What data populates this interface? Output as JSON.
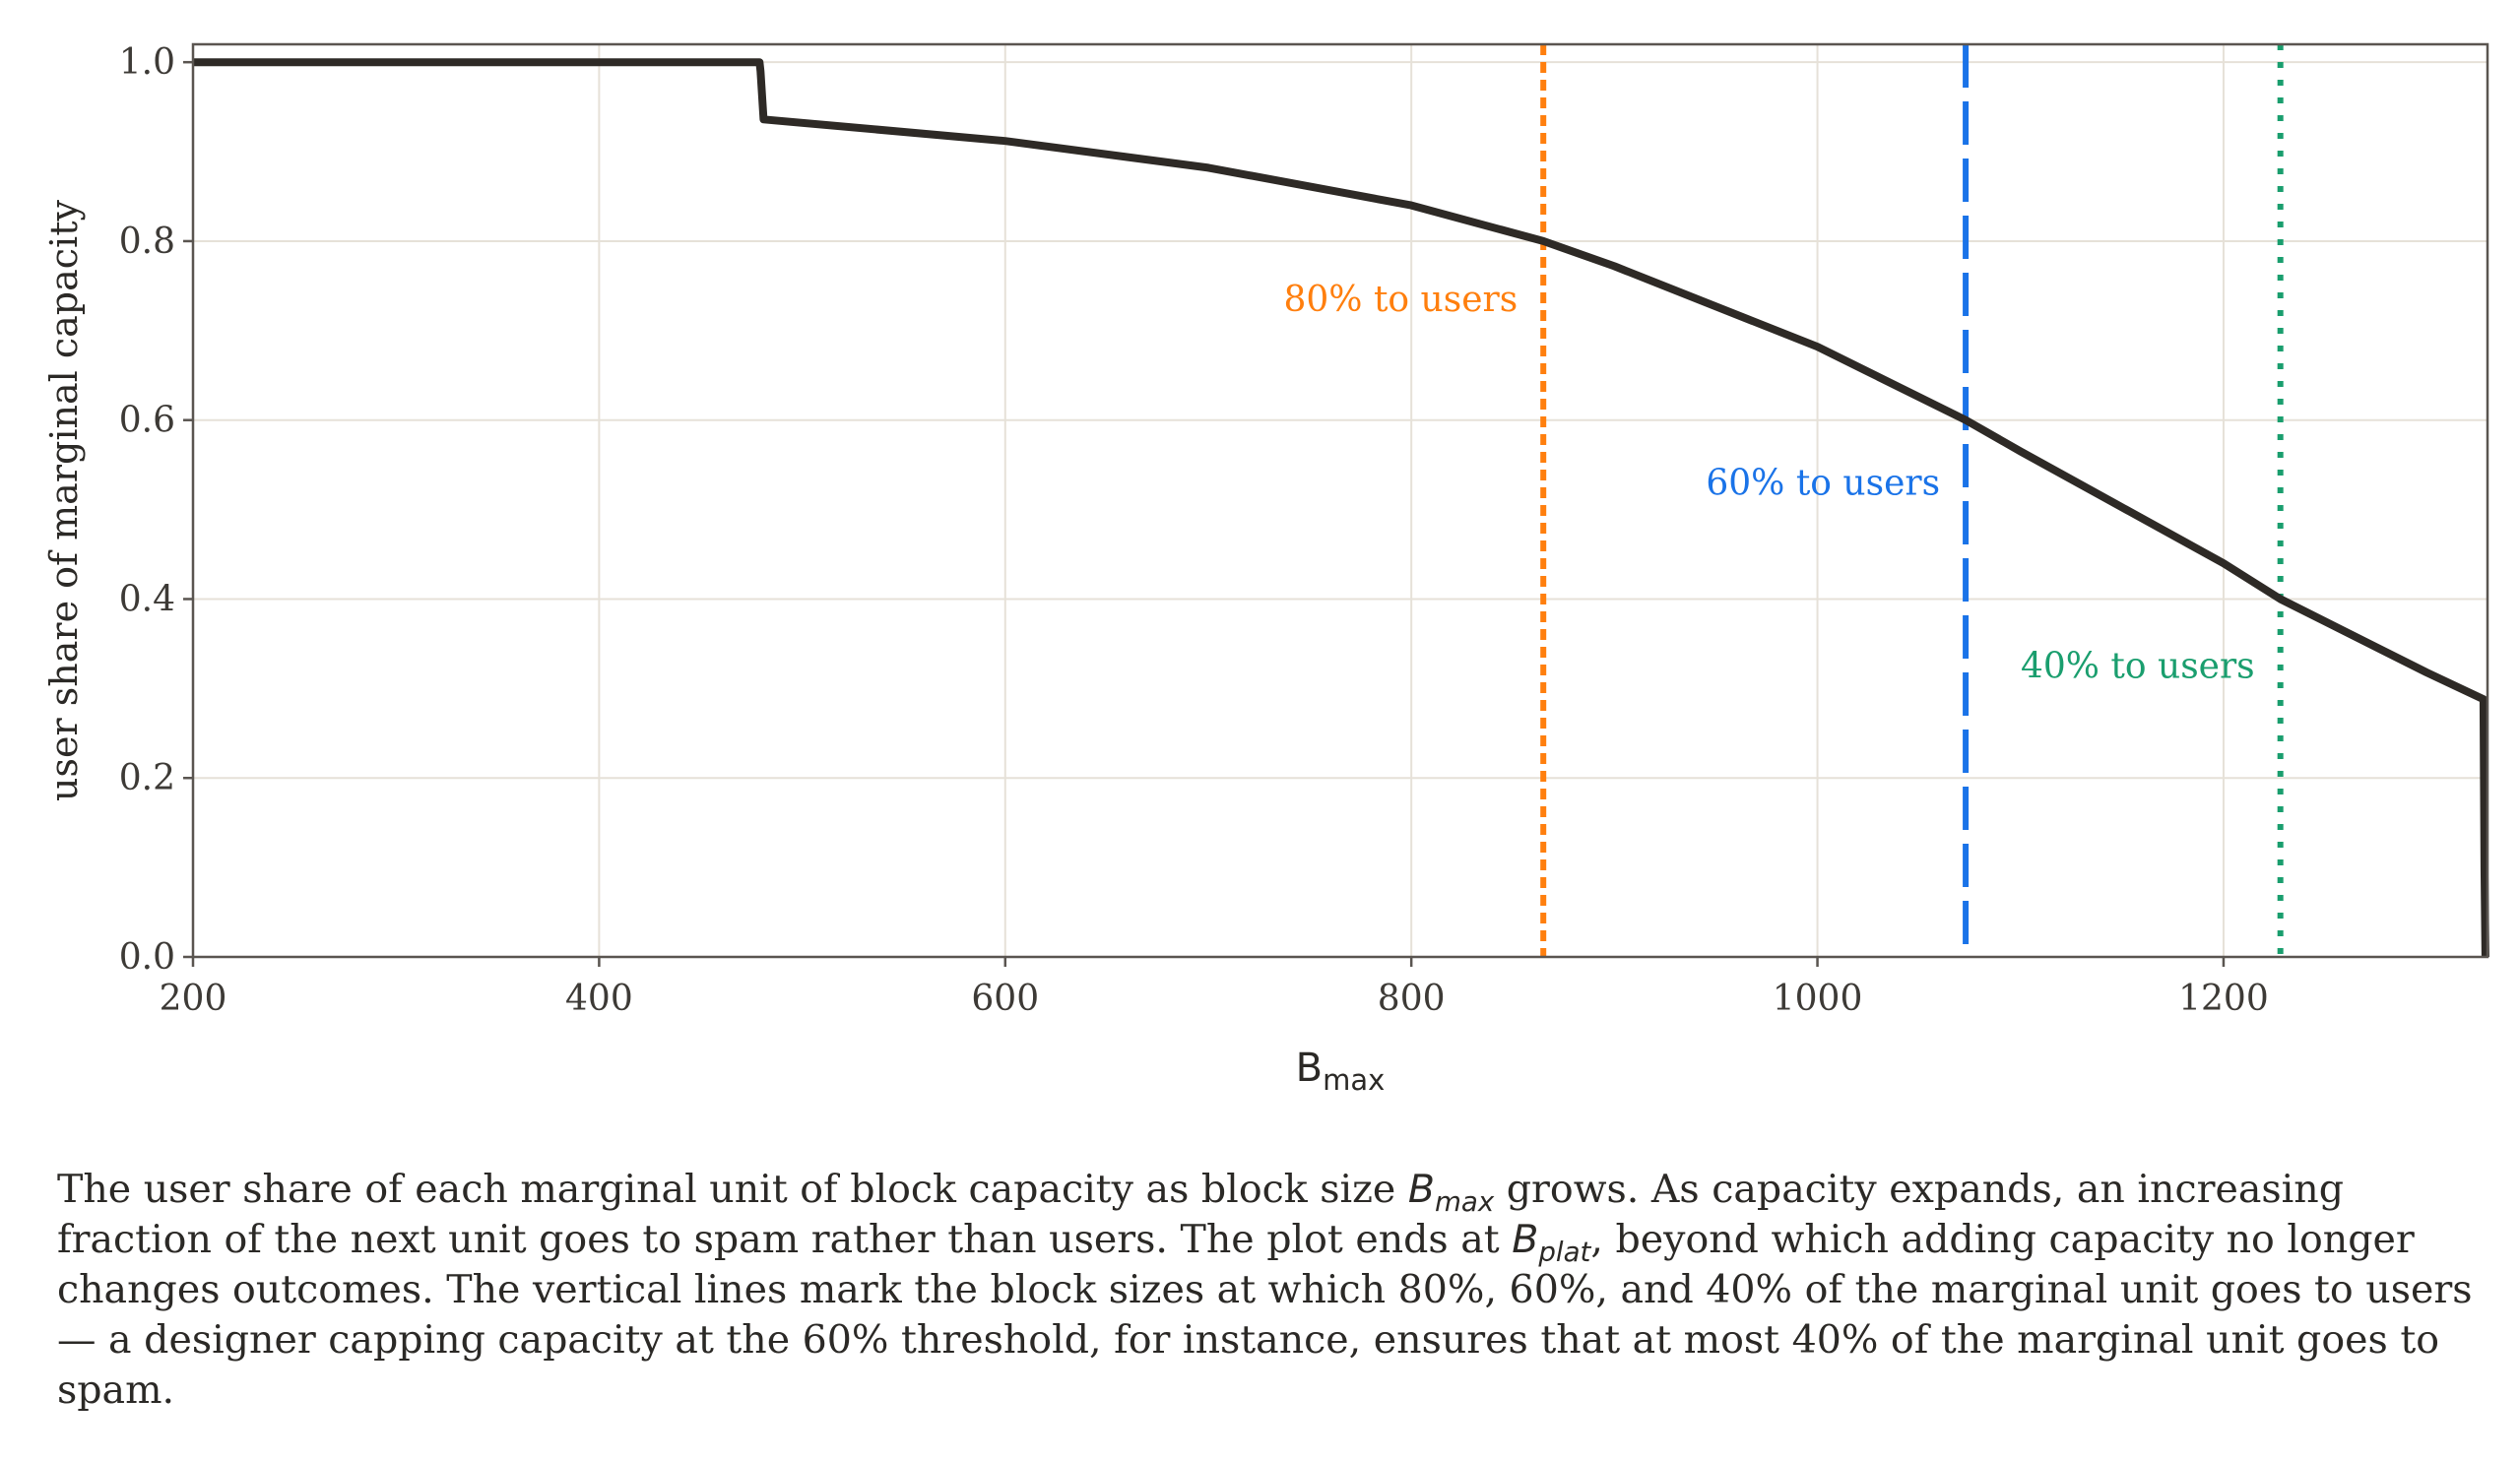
{
  "chart_data": {
    "type": "line",
    "title": "",
    "xlabel": {
      "base": "B",
      "sub": "max"
    },
    "ylabel": "user share of marginal capacity",
    "xlim": [
      200,
      1330
    ],
    "ylim": [
      0.0,
      1.02
    ],
    "xticks": [
      200,
      400,
      600,
      800,
      1000,
      1200
    ],
    "yticks": [
      0.0,
      0.2,
      0.4,
      0.6,
      0.8,
      1.0
    ],
    "xtick_labels": [
      "200",
      "400",
      "600",
      "800",
      "1000",
      "1200"
    ],
    "ytick_labels": [
      "0.0",
      "0.2",
      "0.4",
      "0.6",
      "0.8",
      "1.0"
    ],
    "grid": true,
    "series": [
      {
        "name": "user share",
        "color": "#2e2a26",
        "x": [
          200,
          479,
          479.5,
          481,
          600,
          700,
          800,
          865,
          900,
          1000,
          1073,
          1100,
          1200,
          1228,
          1300,
          1328,
          1328.5,
          1329
        ],
        "y": [
          1.0,
          1.0,
          0.99,
          0.936,
          0.912,
          0.882,
          0.84,
          0.8,
          0.772,
          0.682,
          0.6,
          0.565,
          0.44,
          0.4,
          0.318,
          0.288,
          0.1,
          0.0
        ]
      }
    ],
    "vlines": [
      {
        "x": 865,
        "label": "80% to users",
        "color": "#ff7f0e",
        "style": "dotted-dense"
      },
      {
        "x": 1073,
        "label": "60% to users",
        "color": "#1a73e8",
        "style": "dashed"
      },
      {
        "x": 1228,
        "label": "40% to users",
        "color": "#1a9e6e",
        "style": "dotted"
      }
    ]
  },
  "caption": {
    "part1": "The user share of each marginal unit of block capacity as block size ",
    "math1_base": "B",
    "math1_sub": "max",
    "part2": " grows. As capacity expands, an increasing fraction of the next unit goes to spam rather than users. The plot ends at ",
    "math2_base": "B",
    "math2_sub": "plat",
    "part3": ", beyond which adding capacity no longer changes outcomes. The vertical lines mark the block sizes at which 80%, 60%, and 40% of the marginal unit goes to users — a designer capping capacity at the 60% threshold, for instance, ensures that at most 40% of the marginal unit goes to spam."
  }
}
